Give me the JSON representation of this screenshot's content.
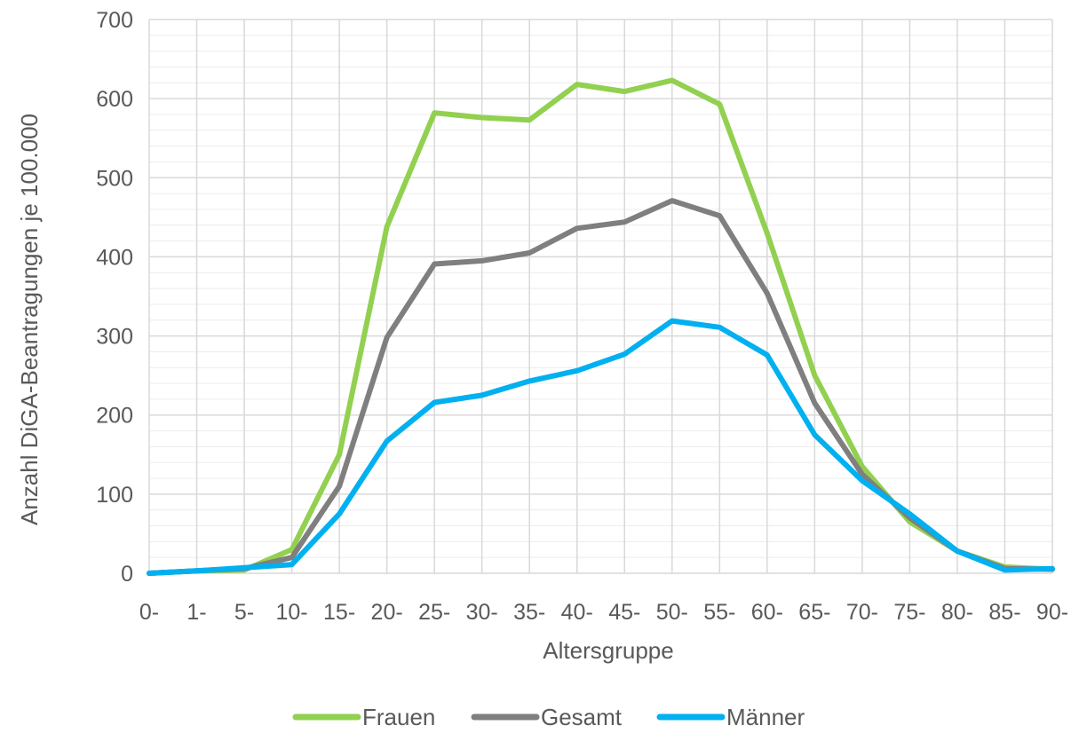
{
  "chart_data": {
    "type": "line",
    "title": "",
    "xlabel": "Altersgruppe",
    "ylabel": "Anzahl DiGA-Beantragungen je 100.000",
    "ylim": [
      0,
      700
    ],
    "yticks": [
      0,
      100,
      200,
      300,
      400,
      500,
      600,
      700
    ],
    "grid": true,
    "legend_position": "bottom",
    "categories": [
      "0-",
      "1-",
      "5-",
      "10-",
      "15-",
      "20-",
      "25-",
      "30-",
      "35-",
      "40-",
      "45-",
      "50-",
      "55-",
      "60-",
      "65-",
      "70-",
      "75-",
      "80-",
      "85-",
      "90-"
    ],
    "series": [
      {
        "name": "Frauen",
        "color": "#92d050",
        "values": [
          0,
          3,
          4,
          30,
          150,
          438,
          582,
          576,
          573,
          618,
          609,
          623,
          593,
          430,
          250,
          135,
          65,
          28,
          8,
          5
        ]
      },
      {
        "name": "Gesamt",
        "color": "#7f7f7f",
        "values": [
          0,
          3,
          6,
          20,
          110,
          298,
          391,
          395,
          405,
          436,
          444,
          471,
          452,
          354,
          215,
          125,
          70,
          28,
          6,
          5
        ]
      },
      {
        "name": "Männer",
        "color": "#00b0f0",
        "values": [
          0,
          3,
          7,
          11,
          75,
          167,
          216,
          225,
          243,
          256,
          277,
          319,
          311,
          276,
          175,
          117,
          75,
          28,
          4,
          6
        ]
      }
    ]
  }
}
